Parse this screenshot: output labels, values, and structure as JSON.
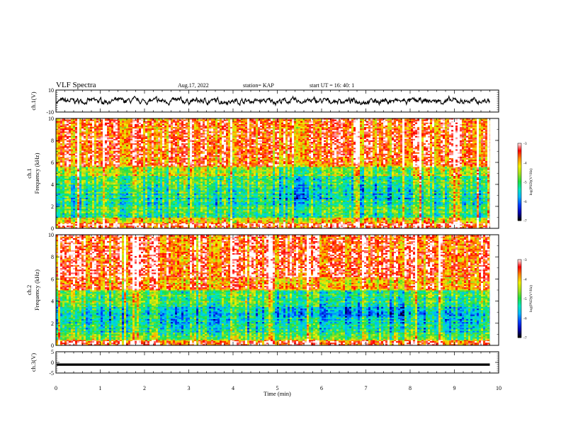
{
  "header": {
    "title": "VLF Spectra",
    "date": "Aug.17, 2022",
    "station": "station= KAP",
    "start": "start  UT  =    16: 40: 1"
  },
  "colors": {
    "colormap": [
      "#000000",
      "#0000b0",
      "#0040ff",
      "#00b4ff",
      "#00e8c0",
      "#20e040",
      "#a0e020",
      "#f0f000",
      "#ff8c00",
      "#ff0000",
      "#ffffff"
    ]
  },
  "chart_data": [
    {
      "type": "line",
      "panel": "waveform-ch1",
      "ylabel": "ch.1(V)",
      "ylim": [
        -10,
        10
      ],
      "yticks": [
        "10",
        "-10"
      ],
      "xlim": [
        0,
        10
      ],
      "note_series": "noisy waveform, approx. -5..5 V, visible 0–9.8 min"
    },
    {
      "type": "heatmap",
      "panel": "spectrogram-ch1",
      "ylabel_top": "ch.1",
      "ylabel": "Frequency (kHz)",
      "ylim": [
        0,
        10
      ],
      "yticks": [
        "0",
        "2",
        "4",
        "6",
        "8",
        "10"
      ],
      "xlim": [
        0,
        10
      ],
      "data_end_min": 9.8,
      "level_change_min": [
        4.95,
        8.05
      ],
      "bands_khz": [
        {
          "from": 0,
          "to": 0.5,
          "level": -3.2
        },
        {
          "from": 0.5,
          "to": 1.0,
          "level": -4.2
        },
        {
          "from": 1.0,
          "to": 2.0,
          "level": -5.0
        },
        {
          "from": 2.0,
          "to": 3.2,
          "level": -5.3
        },
        {
          "from": 3.2,
          "to": 4.8,
          "level": -5.0
        },
        {
          "from": 4.8,
          "to": 5.6,
          "level": -4.4
        },
        {
          "from": 5.6,
          "to": 10,
          "level": -3.6
        }
      ],
      "colorbar": {
        "label": "log(PSD)(V²/Hz)",
        "min": -7,
        "max": -3,
        "ticks": [
          "-3",
          "-4",
          "-5",
          "-6",
          "-7"
        ]
      }
    },
    {
      "type": "heatmap",
      "panel": "spectrogram-ch2",
      "ylabel_top": "ch.2",
      "ylabel": "Frequency (kHz)",
      "ylim": [
        0,
        10
      ],
      "yticks": [
        "0",
        "2",
        "4",
        "6",
        "8",
        "10"
      ],
      "xlim": [
        0,
        10
      ],
      "data_end_min": 9.8,
      "level_change_min": [
        4.95,
        8.05
      ],
      "bands_khz": [
        {
          "from": 0,
          "to": 0.5,
          "level": -3.6
        },
        {
          "from": 0.5,
          "to": 1.2,
          "level": -4.8
        },
        {
          "from": 1.2,
          "to": 2.0,
          "level": -5.3
        },
        {
          "from": 2.0,
          "to": 3.5,
          "level": -5.6
        },
        {
          "from": 3.5,
          "to": 5.0,
          "level": -4.9
        },
        {
          "from": 5.0,
          "to": 6.2,
          "level": -3.8
        },
        {
          "from": 6.2,
          "to": 10,
          "level": -3.5
        }
      ],
      "colorbar": {
        "label": "log(PSD)(V²/Hz)",
        "min": -7,
        "max": -3,
        "ticks": [
          "-3",
          "-4",
          "-5",
          "-6",
          "-7"
        ]
      }
    },
    {
      "type": "line",
      "panel": "waveform-ch3",
      "ylabel": "ch.3(V)",
      "ylim": [
        -5,
        5
      ],
      "yticks": [
        "5",
        "0",
        "-5"
      ],
      "xlim": [
        0,
        10
      ],
      "xlabel": "Time (min)",
      "xticks": [
        "0",
        "1",
        "2",
        "3",
        "4",
        "5",
        "6",
        "7",
        "8",
        "9",
        "10"
      ],
      "note_series": "thick flat band near -1 V, visible 0–9.8 min"
    }
  ]
}
